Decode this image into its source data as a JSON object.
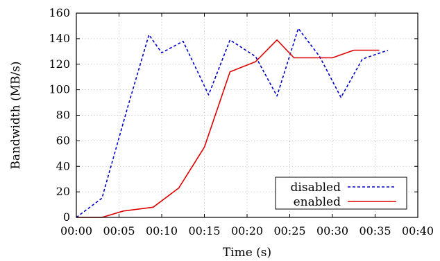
{
  "chart_data": {
    "type": "line",
    "xlabel": "Time (s)",
    "ylabel": "Bandwidth (MB/s)",
    "xlim": [
      0,
      40
    ],
    "ylim": [
      0,
      160
    ],
    "x_ticks": [
      0,
      5,
      10,
      15,
      20,
      25,
      30,
      35,
      40
    ],
    "x_tick_labels": [
      "00:00",
      "00:05",
      "00:10",
      "00:15",
      "00:20",
      "00:25",
      "00:30",
      "00:35",
      "00:40"
    ],
    "y_ticks": [
      0,
      20,
      40,
      60,
      80,
      100,
      120,
      140,
      160
    ],
    "y_tick_labels": [
      "0",
      "20",
      "40",
      "60",
      "80",
      "100",
      "120",
      "140",
      "160"
    ],
    "grid": true,
    "legend_position": "bottom-right",
    "series": [
      {
        "name": "disabled",
        "color": "#0000cc",
        "style": "dashed",
        "x": [
          0,
          3,
          6,
          8.5,
          10,
          12.5,
          15.5,
          18,
          21,
          23.5,
          26,
          28.5,
          31,
          33.5,
          36.5
        ],
        "y": [
          0,
          15,
          86,
          143,
          129,
          138,
          96,
          139,
          126,
          95,
          148,
          126,
          94,
          124,
          131
        ]
      },
      {
        "name": "enabled",
        "color": "#dd0000",
        "style": "solid",
        "x": [
          0,
          3,
          5.5,
          9,
          12,
          15,
          18,
          21,
          23.5,
          25.5,
          28,
          30,
          32.5,
          35.5
        ],
        "y": [
          0,
          0,
          5,
          8,
          23,
          55,
          114,
          122,
          139,
          125,
          125,
          125,
          131,
          131
        ]
      }
    ]
  }
}
